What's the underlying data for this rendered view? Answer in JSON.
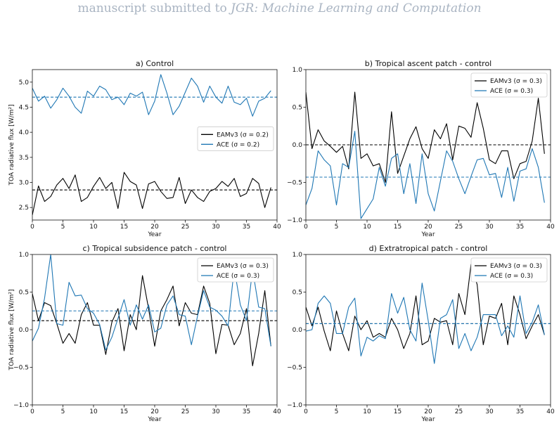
{
  "header": {
    "prefix": "manuscript submitted to ",
    "journal": "JGR: Machine Learning and Computation"
  },
  "colors": {
    "eam": "#000000",
    "ace": "#1f77b4"
  },
  "chart_data": [
    {
      "type": "line",
      "title": "a) Control",
      "xlabel": "Year",
      "ylabel": "TOA radiative flux [W/m²]",
      "xlim": [
        0,
        40
      ],
      "ylim": [
        2.25,
        5.25
      ],
      "xticks": [
        0,
        5,
        10,
        15,
        20,
        25,
        30,
        35,
        40
      ],
      "yticks": [
        2.5,
        3.0,
        3.5,
        4.0,
        4.5,
        5.0
      ],
      "ytick_labels": [
        "2.5",
        "3.0",
        "3.5",
        "4.0",
        "4.5",
        "5.0"
      ],
      "legend_position": "center-right",
      "x": [
        0,
        1,
        2,
        3,
        4,
        5,
        6,
        7,
        8,
        9,
        10,
        11,
        12,
        13,
        14,
        15,
        16,
        17,
        18,
        19,
        20,
        21,
        22,
        23,
        24,
        25,
        26,
        27,
        28,
        29,
        30,
        31,
        32,
        33,
        34,
        35,
        36,
        37,
        38,
        39
      ],
      "series": [
        {
          "name": "EAMv3 (σ = 0.2)",
          "color": "#000000",
          "values": [
            2.35,
            2.93,
            2.62,
            2.72,
            2.95,
            3.08,
            2.88,
            3.15,
            2.62,
            2.7,
            2.92,
            3.1,
            2.88,
            3.0,
            2.48,
            3.2,
            3.02,
            2.95,
            2.48,
            2.97,
            3.02,
            2.82,
            2.68,
            2.7,
            3.1,
            2.58,
            2.85,
            2.7,
            2.62,
            2.82,
            2.88,
            3.02,
            2.92,
            3.08,
            2.72,
            2.78,
            3.08,
            2.98,
            2.5,
            2.9
          ],
          "mean": 2.85
        },
        {
          "name": "ACE (σ = 0.2)",
          "color": "#1f77b4",
          "values": [
            4.88,
            4.62,
            4.72,
            4.48,
            4.65,
            4.88,
            4.72,
            4.5,
            4.38,
            4.82,
            4.72,
            4.92,
            4.85,
            4.65,
            4.7,
            4.55,
            4.78,
            4.72,
            4.8,
            4.35,
            4.62,
            5.15,
            4.78,
            4.35,
            4.52,
            4.8,
            5.08,
            4.92,
            4.6,
            4.92,
            4.7,
            4.58,
            4.92,
            4.6,
            4.55,
            4.68,
            4.32,
            4.62,
            4.68,
            4.83
          ],
          "mean": 4.7
        }
      ]
    },
    {
      "type": "line",
      "title": "b) Tropical ascent patch - control",
      "xlabel": "Year",
      "ylabel": "",
      "xlim": [
        0,
        40
      ],
      "ylim": [
        -1.0,
        1.0
      ],
      "xticks": [
        0,
        5,
        10,
        15,
        20,
        25,
        30,
        35,
        40
      ],
      "yticks": [
        -1.0,
        -0.5,
        0.0,
        0.5,
        1.0
      ],
      "ytick_labels": [
        "−1.0",
        "−0.5",
        "0.0",
        "0.5",
        "1.0"
      ],
      "legend_position": "top-right",
      "x": [
        0,
        1,
        2,
        3,
        4,
        5,
        6,
        7,
        8,
        9,
        10,
        11,
        12,
        13,
        14,
        15,
        16,
        17,
        18,
        19,
        20,
        21,
        22,
        23,
        24,
        25,
        26,
        27,
        28,
        29,
        30,
        31,
        32,
        33,
        34,
        35,
        36,
        37,
        38,
        39
      ],
      "series": [
        {
          "name": "EAMv3 (σ = 0.3)",
          "color": "#000000",
          "values": [
            0.7,
            -0.05,
            0.2,
            0.05,
            -0.02,
            -0.1,
            -0.02,
            -0.32,
            0.7,
            -0.18,
            -0.12,
            -0.28,
            -0.25,
            -0.5,
            0.44,
            -0.38,
            -0.15,
            0.08,
            0.24,
            -0.05,
            -0.18,
            0.2,
            0.08,
            0.28,
            -0.2,
            0.25,
            0.22,
            0.1,
            0.56,
            0.22,
            -0.2,
            -0.25,
            -0.08,
            -0.08,
            -0.45,
            -0.25,
            -0.22,
            0.05,
            0.62,
            -0.12
          ],
          "mean": 0.0
        },
        {
          "name": "ACE (σ = 0.3)",
          "color": "#1f77b4",
          "values": [
            -0.8,
            -0.58,
            -0.08,
            -0.2,
            -0.28,
            -0.8,
            -0.25,
            -0.3,
            0.18,
            -0.98,
            -0.85,
            -0.72,
            -0.3,
            -0.55,
            -0.18,
            -0.12,
            -0.65,
            -0.25,
            -0.78,
            -0.12,
            -0.65,
            -0.88,
            -0.48,
            -0.08,
            -0.22,
            -0.45,
            -0.65,
            -0.42,
            -0.2,
            -0.18,
            -0.4,
            -0.38,
            -0.7,
            -0.3,
            -0.75,
            -0.35,
            -0.32,
            -0.05,
            -0.3,
            -0.77
          ],
          "mean": -0.43
        }
      ]
    },
    {
      "type": "line",
      "title": "c) Tropical subsidence patch - control",
      "xlabel": "Year",
      "ylabel": "TOA radiative flux [W/m²]",
      "xlim": [
        0,
        40
      ],
      "ylim": [
        -1.0,
        1.0
      ],
      "xticks": [
        0,
        5,
        10,
        15,
        20,
        25,
        30,
        35,
        40
      ],
      "yticks": [
        -1.0,
        -0.5,
        0.0,
        0.5,
        1.0
      ],
      "ytick_labels": [
        "−1.0",
        "−0.5",
        "0.0",
        "0.5",
        "1.0"
      ],
      "legend_position": "top-right",
      "x": [
        0,
        1,
        2,
        3,
        4,
        5,
        6,
        7,
        8,
        9,
        10,
        11,
        12,
        13,
        14,
        15,
        16,
        17,
        18,
        19,
        20,
        21,
        22,
        23,
        24,
        25,
        26,
        27,
        28,
        29,
        30,
        31,
        32,
        33,
        34,
        35,
        36,
        37,
        38,
        39
      ],
      "series": [
        {
          "name": "EAMv3 (σ = 0.3)",
          "color": "#000000",
          "values": [
            0.48,
            0.12,
            0.36,
            0.32,
            0.08,
            -0.18,
            -0.05,
            -0.18,
            0.2,
            0.36,
            0.06,
            0.06,
            -0.33,
            0.1,
            0.28,
            -0.28,
            0.2,
            0.0,
            0.72,
            0.28,
            -0.22,
            0.25,
            0.4,
            0.58,
            0.05,
            0.36,
            0.22,
            0.2,
            0.58,
            0.35,
            -0.32,
            0.07,
            0.06,
            -0.2,
            -0.05,
            0.28,
            -0.48,
            -0.05,
            0.52,
            -0.22
          ],
          "mean": 0.12
        },
        {
          "name": "ACE (σ = 0.3)",
          "color": "#1f77b4",
          "values": [
            -0.15,
            0.02,
            0.42,
            1.0,
            0.08,
            0.06,
            0.63,
            0.45,
            0.46,
            0.28,
            0.22,
            0.07,
            -0.27,
            -0.1,
            0.15,
            0.4,
            0.06,
            0.33,
            0.14,
            0.33,
            -0.03,
            0.02,
            0.33,
            0.45,
            0.2,
            0.18,
            -0.2,
            0.18,
            0.52,
            0.3,
            0.26,
            0.18,
            0.05,
            0.82,
            0.33,
            0.12,
            0.8,
            0.3,
            0.28,
            -0.22
          ],
          "mean": 0.25
        }
      ]
    },
    {
      "type": "line",
      "title": "d) Extratropical patch - control",
      "xlabel": "Year",
      "ylabel": "",
      "xlim": [
        0,
        40
      ],
      "ylim": [
        -1.0,
        1.0
      ],
      "xticks": [
        0,
        5,
        10,
        15,
        20,
        25,
        30,
        35,
        40
      ],
      "yticks": [
        -1.0,
        -0.5,
        0.0,
        0.5,
        1.0
      ],
      "ytick_labels": [
        "−1.0",
        "−0.5",
        "0.0",
        "0.5",
        "1.0"
      ],
      "legend_position": "top-right",
      "x": [
        0,
        1,
        2,
        3,
        4,
        5,
        6,
        7,
        8,
        9,
        10,
        11,
        12,
        13,
        14,
        15,
        16,
        17,
        18,
        19,
        20,
        21,
        22,
        23,
        24,
        25,
        26,
        27,
        28,
        29,
        30,
        31,
        32,
        33,
        34,
        35,
        36,
        37,
        38,
        39
      ],
      "series": [
        {
          "name": "EAMv3 (σ = 0.3)",
          "color": "#000000",
          "values": [
            0.3,
            0.05,
            0.3,
            -0.02,
            -0.28,
            0.25,
            -0.05,
            -0.28,
            0.18,
            0.0,
            0.12,
            -0.1,
            -0.05,
            -0.1,
            0.15,
            0.0,
            -0.25,
            -0.05,
            0.45,
            -0.2,
            -0.15,
            0.15,
            0.1,
            0.12,
            -0.2,
            0.48,
            0.2,
            0.87,
            0.6,
            -0.2,
            0.18,
            0.15,
            0.35,
            -0.2,
            0.45,
            0.2,
            -0.12,
            0.05,
            0.2,
            -0.07
          ],
          "mean": 0.08
        },
        {
          "name": "ACE (σ = 0.3)",
          "color": "#1f77b4",
          "values": [
            -0.02,
            0.0,
            0.35,
            0.45,
            0.35,
            -0.05,
            -0.05,
            0.3,
            0.42,
            -0.35,
            -0.1,
            -0.15,
            -0.08,
            -0.12,
            0.48,
            0.22,
            0.43,
            0.0,
            -0.15,
            0.62,
            0.12,
            -0.45,
            0.15,
            0.2,
            0.4,
            -0.25,
            -0.05,
            -0.28,
            -0.1,
            0.2,
            0.2,
            0.2,
            -0.08,
            0.05,
            -0.1,
            0.45,
            -0.05,
            0.1,
            0.33,
            -0.07
          ],
          "mean": 0.08
        }
      ]
    }
  ]
}
